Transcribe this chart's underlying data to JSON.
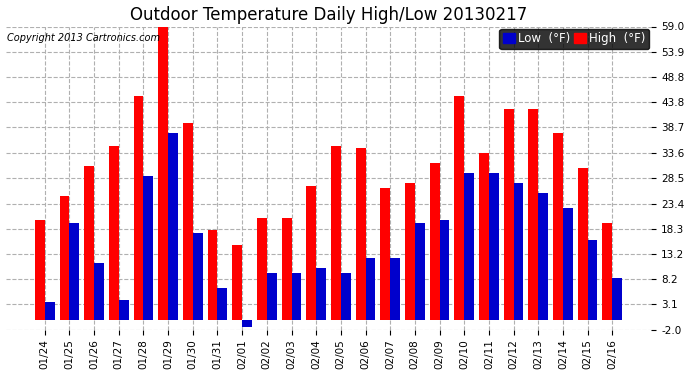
{
  "title": "Outdoor Temperature Daily High/Low 20130217",
  "copyright": "Copyright 2013 Cartronics.com",
  "legend_low": "Low  (°F)",
  "legend_high": "High  (°F)",
  "dates": [
    "01/24",
    "01/25",
    "01/26",
    "01/27",
    "01/28",
    "01/29",
    "01/30",
    "01/31",
    "02/01",
    "02/02",
    "02/03",
    "02/04",
    "02/05",
    "02/06",
    "02/07",
    "02/08",
    "02/09",
    "02/10",
    "02/11",
    "02/12",
    "02/13",
    "02/14",
    "02/15",
    "02/16"
  ],
  "highs": [
    20.0,
    25.0,
    31.0,
    35.0,
    45.0,
    59.0,
    39.5,
    18.0,
    15.0,
    20.5,
    20.5,
    27.0,
    35.0,
    34.5,
    26.5,
    27.5,
    31.5,
    45.0,
    33.5,
    42.5,
    42.5,
    37.5,
    30.5,
    19.5
  ],
  "lows": [
    3.5,
    19.5,
    11.5,
    4.0,
    29.0,
    37.5,
    17.5,
    6.5,
    -1.5,
    9.5,
    9.5,
    10.5,
    9.5,
    12.5,
    12.5,
    19.5,
    20.0,
    29.5,
    29.5,
    27.5,
    25.5,
    22.5,
    16.0,
    8.5
  ],
  "ylim": [
    -2.0,
    59.0
  ],
  "yticks": [
    -2.0,
    3.1,
    8.2,
    13.2,
    18.3,
    23.4,
    28.5,
    33.6,
    38.7,
    43.8,
    48.8,
    53.9,
    59.0
  ],
  "bar_width": 0.4,
  "high_color": "#ff0000",
  "low_color": "#0000cc",
  "bg_color": "#ffffff",
  "grid_color": "#b0b0b0",
  "title_fontsize": 12,
  "tick_fontsize": 7.5,
  "legend_fontsize": 8.5
}
